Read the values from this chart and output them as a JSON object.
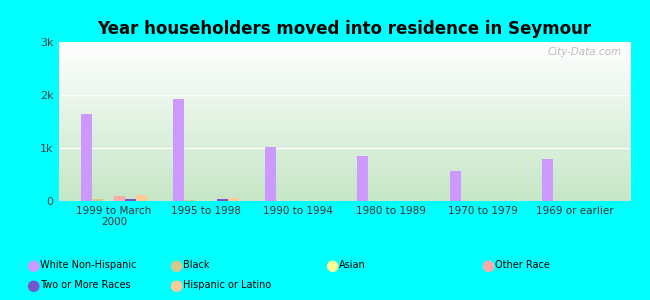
{
  "title": "Year householders moved into residence in Seymour",
  "background_color": "#00FFFF",
  "categories": [
    "1999 to March\n2000",
    "1995 to 1998",
    "1990 to 1994",
    "1980 to 1989",
    "1970 to 1979",
    "1969 or earlier"
  ],
  "series": {
    "White Non-Hispanic": {
      "values": [
        1650,
        1920,
        1020,
        840,
        560,
        790
      ],
      "color": "#cc99ff"
    },
    "Black": {
      "values": [
        30,
        20,
        5,
        5,
        0,
        0
      ],
      "color": "#d4c98a"
    },
    "Asian": {
      "values": [
        0,
        0,
        0,
        0,
        0,
        0
      ],
      "color": "#ffff99"
    },
    "Other Race": {
      "values": [
        100,
        0,
        0,
        0,
        0,
        0
      ],
      "color": "#ffaaaa"
    },
    "Two or More Races": {
      "values": [
        35,
        30,
        0,
        0,
        0,
        0
      ],
      "color": "#7755cc"
    },
    "Hispanic or Latino": {
      "values": [
        120,
        60,
        0,
        0,
        0,
        0
      ],
      "color": "#ffcc99"
    }
  },
  "ylim": [
    0,
    3000
  ],
  "yticks": [
    0,
    1000,
    2000,
    3000
  ],
  "ytick_labels": [
    "0",
    "1k",
    "2k",
    "3k"
  ],
  "bar_width": 0.12,
  "watermark": "City-Data.com",
  "legend_row1": [
    "White Non-Hispanic",
    "Black",
    "Asian",
    "Other Race"
  ],
  "legend_row2": [
    "Two or More Races",
    "Hispanic or Latino"
  ]
}
